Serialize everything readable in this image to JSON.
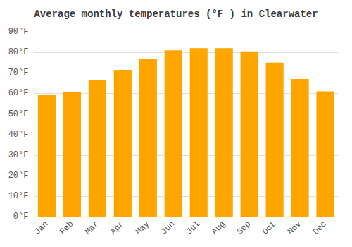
{
  "chart_data": {
    "type": "bar",
    "title": "Average monthly temperatures (°F ) in Clearwater",
    "categories": [
      "Jan",
      "Feb",
      "Mar",
      "Apr",
      "May",
      "Jun",
      "Jul",
      "Aug",
      "Sep",
      "Oct",
      "Nov",
      "Dec"
    ],
    "values": [
      59.5,
      60.5,
      66.5,
      71.5,
      77,
      81,
      82,
      82,
      80.5,
      75,
      67,
      61
    ],
    "color": "#FFA500",
    "ylim": [
      0,
      90
    ],
    "yticks": [
      {
        "value": 0,
        "label": "0°F"
      },
      {
        "value": 10,
        "label": "10°F"
      },
      {
        "value": 20,
        "label": "20°F"
      },
      {
        "value": 30,
        "label": "30°F"
      },
      {
        "value": 40,
        "label": "40°F"
      },
      {
        "value": 50,
        "label": "50°F"
      },
      {
        "value": 60,
        "label": "60°F"
      },
      {
        "value": 70,
        "label": "70°F"
      },
      {
        "value": 80,
        "label": "80°F"
      },
      {
        "value": 90,
        "label": "90°F"
      }
    ],
    "grid": true
  }
}
